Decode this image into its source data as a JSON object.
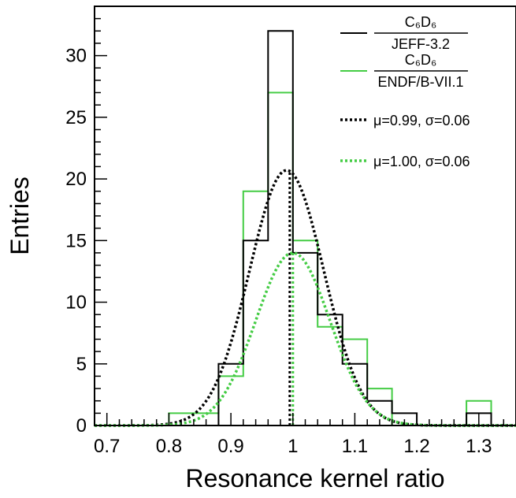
{
  "chart_data": {
    "type": "histogram",
    "xlabel": "Resonance kernel ratio",
    "ylabel": "Entries",
    "xlim": [
      0.68,
      1.36
    ],
    "ylim": [
      0,
      34
    ],
    "x_ticks": [
      "0.7",
      "0.8",
      "0.9",
      "1",
      "1.1",
      "1.2",
      "1.3"
    ],
    "x_tick_values": [
      0.7,
      0.8,
      0.9,
      1.0,
      1.1,
      1.2,
      1.3
    ],
    "y_ticks": [
      "0",
      "5",
      "10",
      "15",
      "20",
      "25",
      "30"
    ],
    "y_tick_values": [
      0,
      5,
      10,
      15,
      20,
      25,
      30
    ],
    "bin_edges": [
      0.68,
      0.72,
      0.76,
      0.8,
      0.84,
      0.88,
      0.92,
      0.96,
      1.0,
      1.04,
      1.08,
      1.12,
      1.16,
      1.2,
      1.24,
      1.28,
      1.32,
      1.36
    ],
    "series": [
      {
        "name": "C6D6 / JEFF-3.2",
        "legend_numerator": "C₆D₆",
        "legend_denominator": "JEFF-3.2",
        "color": "#000000",
        "counts": [
          0,
          0,
          0,
          0,
          0,
          5,
          15,
          32,
          14,
          9,
          5,
          2,
          1,
          0,
          0,
          1,
          0
        ]
      },
      {
        "name": "C6D6 / ENDF/B-VII.1",
        "legend_numerator": "C₆D₆",
        "legend_denominator": "ENDF/B-VII.1",
        "color": "#44cc44",
        "counts": [
          0,
          0,
          0,
          1,
          1,
          4,
          19,
          27,
          15,
          8,
          7,
          3,
          0,
          0,
          0,
          2,
          0
        ]
      }
    ],
    "fits": [
      {
        "label": "μ=0.99, σ=0.06",
        "mu": 0.99,
        "sigma": 0.06,
        "amplitude": 20.7,
        "color": "#000000",
        "vertical_line_at": 0.995
      },
      {
        "label": "μ=1.00, σ=0.06",
        "mu": 1.0,
        "sigma": 0.06,
        "amplitude": 14.0,
        "color": "#44cc44",
        "vertical_line_at": 1.0
      }
    ]
  }
}
